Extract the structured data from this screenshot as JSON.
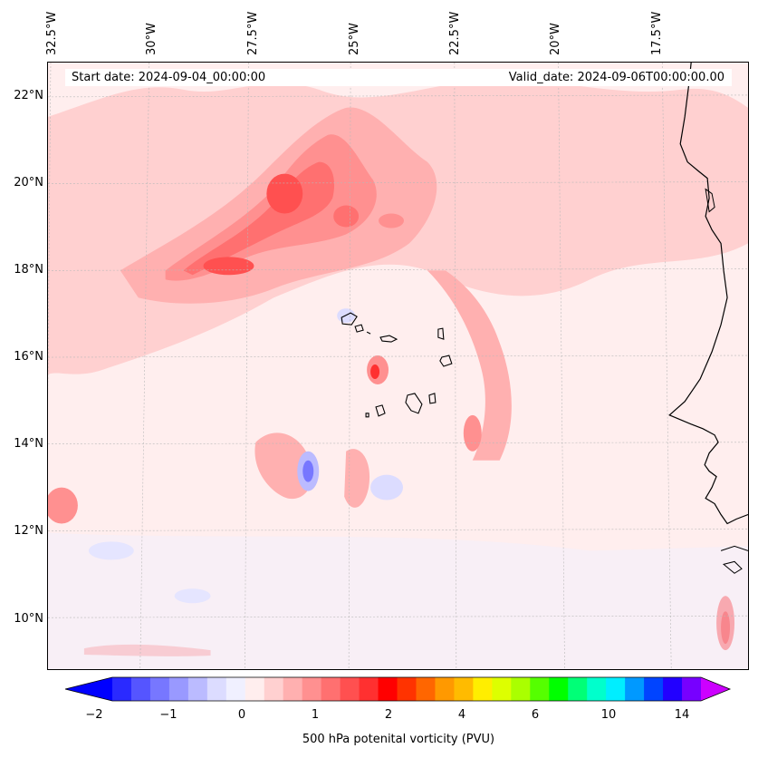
{
  "map": {
    "start_date": "Start date: 2024-09-04_00:00:00",
    "valid_date": "Valid_date: 2024-09-06T00:00:00.00",
    "lat_labels": [
      "22°N",
      "20°N",
      "18°N",
      "16°N",
      "14°N",
      "12°N",
      "10°N"
    ],
    "lon_labels": [
      "32.5°W",
      "30°W",
      "27.5°W",
      "25°W",
      "22.5°W",
      "20°W",
      "17.5°W"
    ],
    "extent": {
      "lon_min": -32.5,
      "lon_max": -15.2,
      "lat_min": 8.8,
      "lat_max": 22.8
    }
  },
  "colorbar": {
    "label": "500 hPa potenital vorticity (PVU)",
    "ticks": [
      "−2",
      "−1",
      "0",
      "1",
      "2",
      "4",
      "6",
      "10",
      "14"
    ],
    "colors": [
      "#0000ff",
      "#2a2aff",
      "#5555ff",
      "#7777ff",
      "#9999ff",
      "#bbbbff",
      "#dcdcff",
      "#f0f0ff",
      "#ffeeee",
      "#ffd0d0",
      "#ffb0b0",
      "#ff9090",
      "#ff7070",
      "#ff5050",
      "#ff3030",
      "#ff0000",
      "#ff3300",
      "#ff6600",
      "#ff9900",
      "#ffbb00",
      "#ffee00",
      "#ddff00",
      "#aaff00",
      "#55ff00",
      "#00ff00",
      "#00ff77",
      "#00ffcc",
      "#00eeff",
      "#0099ff",
      "#0044ff",
      "#2200ff",
      "#7700ff",
      "#cc00ff"
    ]
  }
}
